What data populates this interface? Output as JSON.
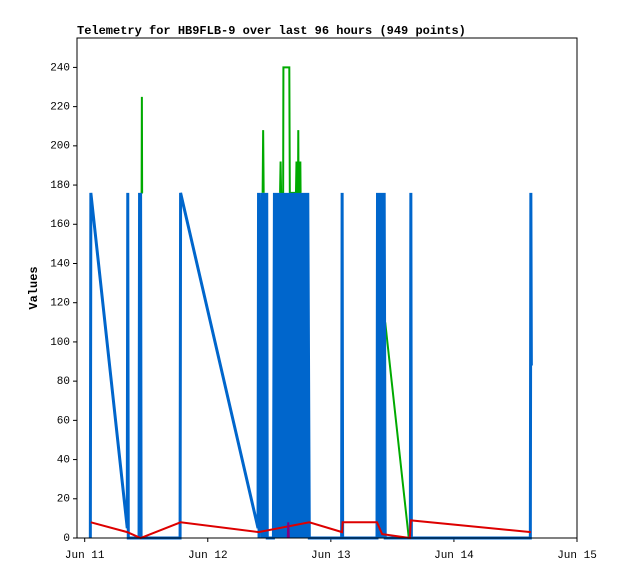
{
  "chart_data": {
    "type": "line",
    "title": "Telemetry for HB9FLB-9 over last 96 hours (949 points)",
    "y_label": "Values",
    "xlim": [
      -1.5,
      96
    ],
    "xticks": [
      {
        "value": 0,
        "label": "Jun 11"
      },
      {
        "value": 24,
        "label": "Jun 12"
      },
      {
        "value": 48,
        "label": "Jun 13"
      },
      {
        "value": 72,
        "label": "Jun 14"
      },
      {
        "value": 96,
        "label": "Jun 15"
      }
    ],
    "ylim": [
      0,
      255
    ],
    "yticks": [
      0,
      20,
      40,
      60,
      80,
      100,
      120,
      140,
      160,
      180,
      200,
      220,
      240
    ],
    "grid": false,
    "series": [
      {
        "color": "#00aa00",
        "x": [
          10.9,
          11.1,
          11.15,
          11.2,
          11.3,
          34.7,
          34.8,
          34.9,
          35.0,
          38.1,
          38.2,
          38.3,
          38.7,
          38.75,
          39.9,
          40.0,
          41.2,
          41.3,
          41.4,
          41.6,
          41.65,
          41.7,
          42.0,
          42.05,
          42.1,
          50.0,
          58.6,
          63.2
        ],
        "values": [
          176,
          176,
          225,
          176,
          null,
          176,
          208,
          176,
          null,
          176,
          192,
          176,
          176,
          240,
          240,
          176,
          176,
          192,
          176,
          176,
          208,
          176,
          176,
          192,
          176,
          null,
          110,
          0
        ]
      },
      {
        "color": "#0066cc",
        "x": [
          1.1,
          1.2,
          8.3,
          8.4,
          8.5,
          10.6,
          10.7,
          10.8,
          10.9,
          11.0,
          18.6,
          18.7,
          33.8,
          33.9,
          34.0,
          34.5,
          34.6,
          35.0,
          35.1,
          35.5,
          35.6,
          36.8,
          37.0,
          37.3,
          37.5,
          37.8,
          38.0,
          38.3,
          38.5,
          38.8,
          39.0,
          39.3,
          39.5,
          39.8,
          40.0,
          40.3,
          40.5,
          40.8,
          41.0,
          41.3,
          41.5,
          41.8,
          42.0,
          42.3,
          42.5,
          42.8,
          43.0,
          43.3,
          43.5,
          43.8,
          50.1,
          50.2,
          50.3,
          57.0,
          57.1,
          57.3,
          57.5,
          57.7,
          57.9,
          58.1,
          58.4,
          58.6,
          63.5,
          63.6,
          63.7,
          86.9,
          87.0,
          87.1
        ],
        "values": [
          0,
          176,
          5,
          176,
          0,
          0,
          176,
          0,
          176,
          0,
          0,
          176,
          5,
          176,
          0,
          176,
          0,
          176,
          0,
          176,
          0,
          0,
          176,
          0,
          176,
          0,
          176,
          0,
          176,
          0,
          176,
          0,
          176,
          0,
          176,
          0,
          176,
          0,
          176,
          0,
          176,
          0,
          176,
          0,
          176,
          0,
          176,
          0,
          176,
          0,
          0,
          176,
          0,
          0,
          176,
          0,
          176,
          0,
          176,
          0,
          176,
          0,
          0,
          176,
          0,
          0,
          176,
          88
        ]
      },
      {
        "color": "#dd0000",
        "x": [
          1.2,
          8.3,
          10.9,
          18.7,
          33.9,
          43.8,
          50.2,
          50.3,
          57.0,
          58.0,
          63.4,
          63.6,
          87.0
        ],
        "values": [
          8,
          3,
          0,
          8,
          3,
          8,
          3,
          8,
          8,
          2,
          0,
          9,
          3
        ]
      },
      {
        "color": "#800080",
        "x": [
          39.6,
          39.7,
          39.8
        ],
        "values": [
          0,
          8,
          0
        ]
      }
    ]
  }
}
